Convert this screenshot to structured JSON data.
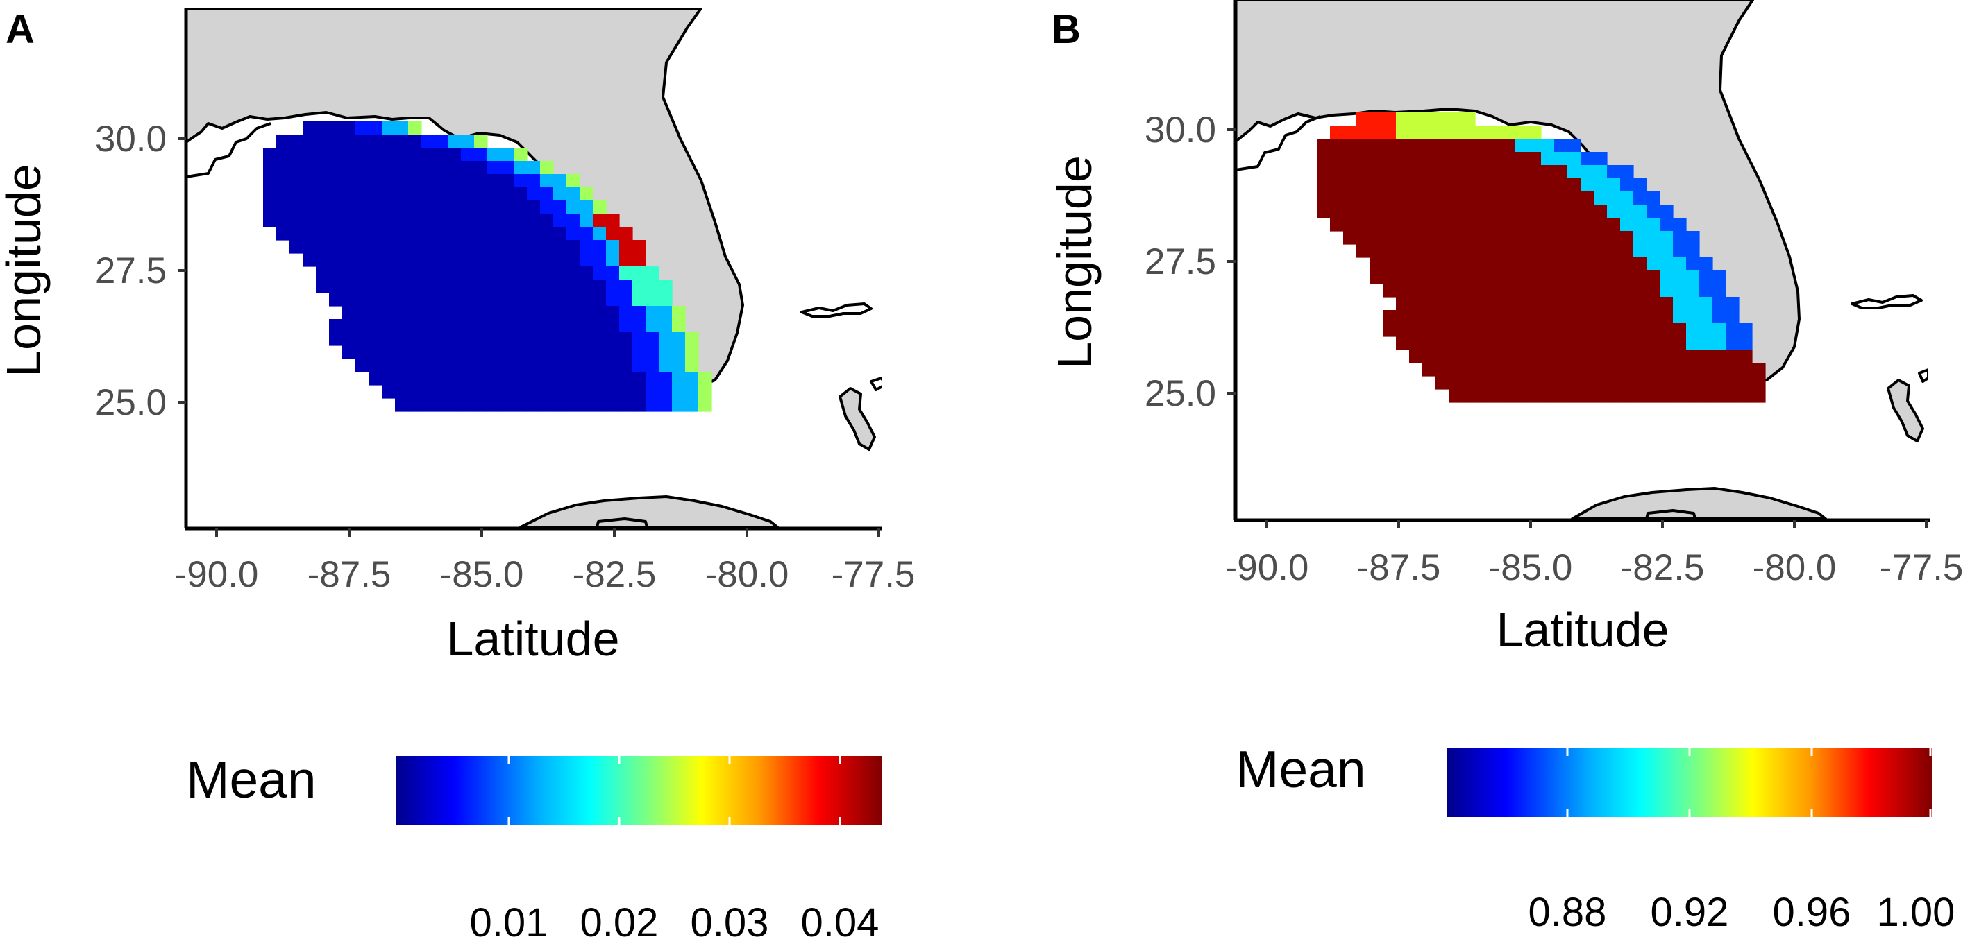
{
  "figure": {
    "panels": [
      {
        "id": "A",
        "label": "A",
        "xlabel": "Latitude",
        "ylabel": "Longitude",
        "x_ticks": [
          "-90.0",
          "-87.5",
          "-85.0",
          "-82.5",
          "-80.0",
          "-77.5"
        ],
        "y_ticks": [
          "30.0",
          "27.5",
          "25.0"
        ],
        "legend": {
          "title": "Mean",
          "ticks": [
            "0.01",
            "0.02",
            "0.03",
            "0.04"
          ],
          "colors": [
            "#00008b",
            "#0000ff",
            "#00b4ff",
            "#00ffff",
            "#7fff7f",
            "#ffff00",
            "#ff9800",
            "#ff0000",
            "#800000"
          ]
        }
      },
      {
        "id": "B",
        "label": "B",
        "xlabel": "Latitude",
        "ylabel": "Longitude",
        "x_ticks": [
          "-90.0",
          "-87.5",
          "-85.0",
          "-82.5",
          "-80.0",
          "-77.5"
        ],
        "y_ticks": [
          "30.0",
          "27.5",
          "25.0"
        ],
        "legend": {
          "title": "Mean",
          "ticks": [
            "0.88",
            "0.92",
            "0.96",
            "1.00"
          ],
          "colors": [
            "#00008b",
            "#0000ff",
            "#00b4ff",
            "#00ffff",
            "#7fff7f",
            "#ffff00",
            "#ff9800",
            "#ff0000",
            "#800000"
          ]
        }
      }
    ],
    "map_colors": {
      "land": "#d3d3d3",
      "coastline": "#000000"
    }
  }
}
